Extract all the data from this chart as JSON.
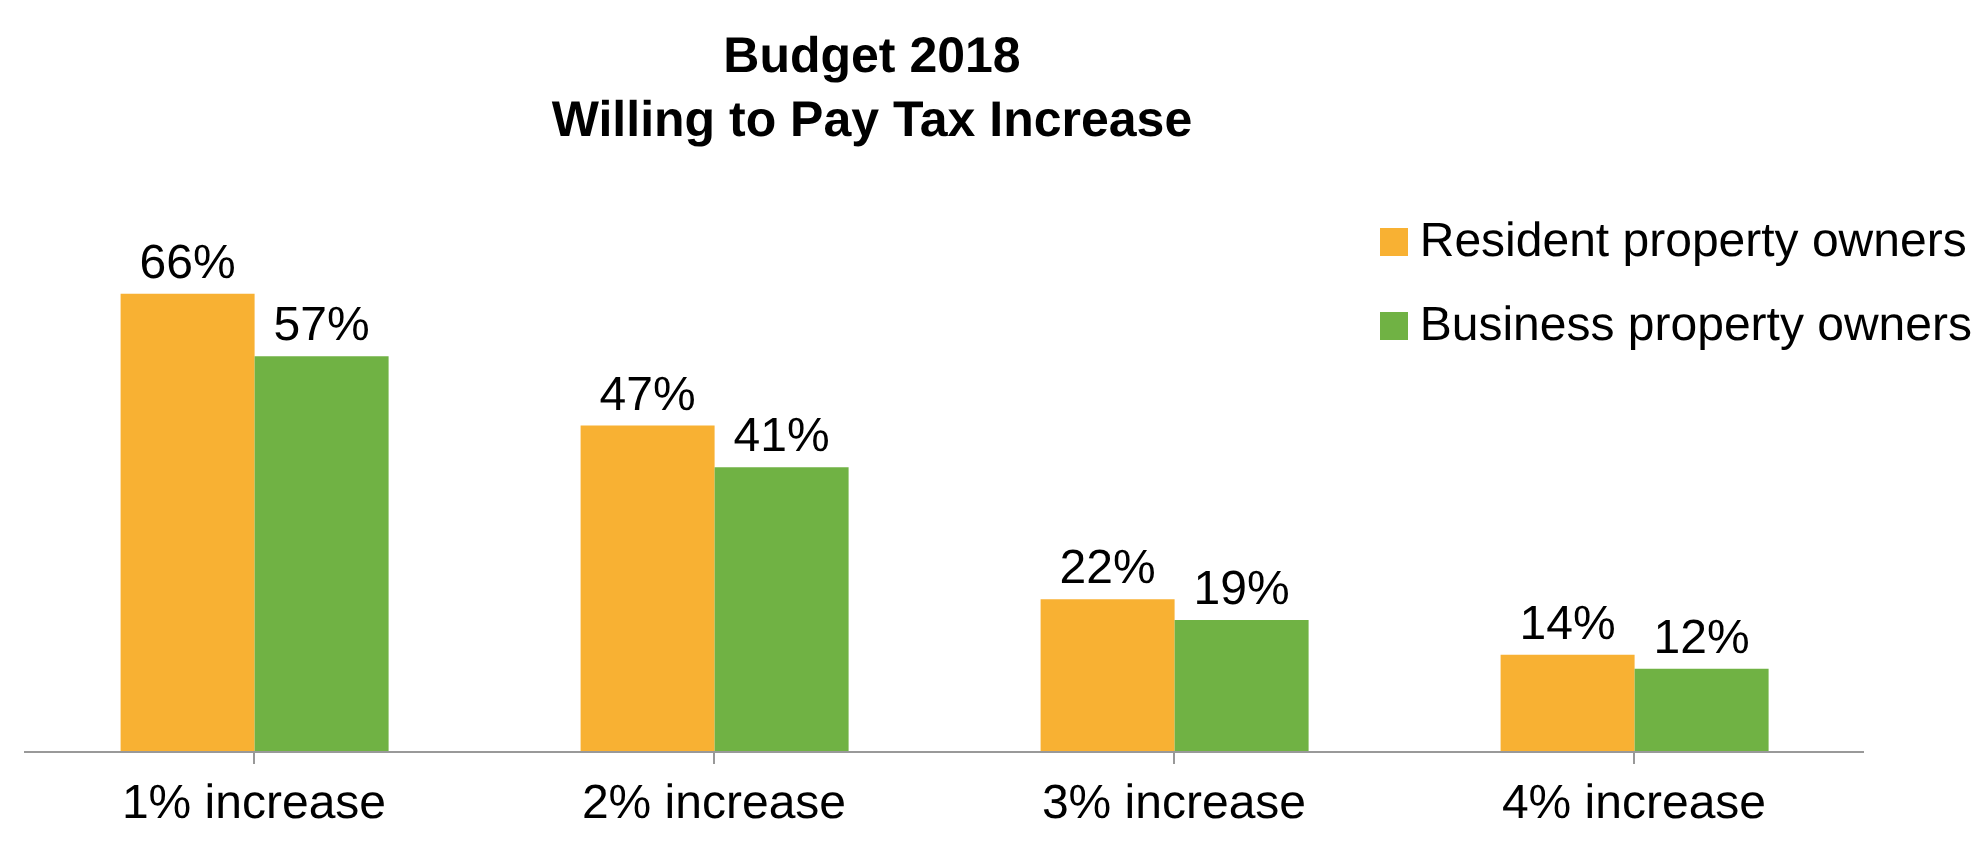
{
  "chart_data": {
    "type": "bar",
    "title": "Budget 2018\nWilling to Pay Tax Increase",
    "categories": [
      "1% increase",
      "2% increase",
      "3% increase",
      "4% increase"
    ],
    "series": [
      {
        "name": "Resident property owners",
        "color": "#f8b133",
        "values": [
          66,
          47,
          22,
          14
        ],
        "value_labels": [
          "66%",
          "47%",
          "22%",
          "14%"
        ]
      },
      {
        "name": "Business property owners",
        "color": "#70b244",
        "values": [
          57,
          41,
          19,
          12
        ],
        "value_labels": [
          "57%",
          "41%",
          "19%",
          "12%"
        ]
      }
    ],
    "legend": "top right",
    "grid": false
  }
}
